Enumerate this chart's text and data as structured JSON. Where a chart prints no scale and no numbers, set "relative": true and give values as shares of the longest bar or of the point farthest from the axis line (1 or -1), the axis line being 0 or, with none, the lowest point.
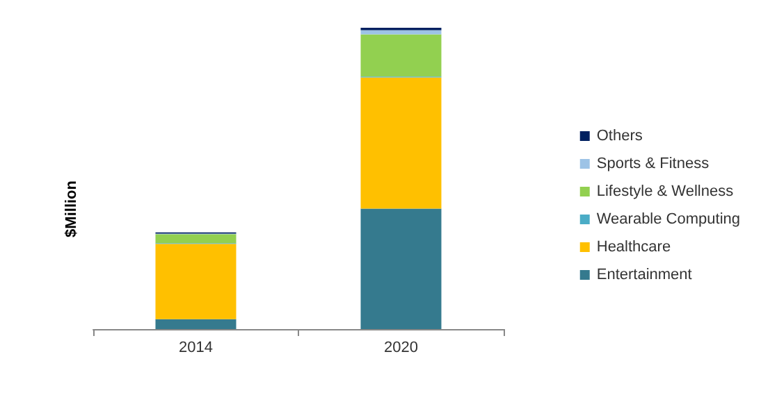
{
  "chart_data": {
    "type": "bar",
    "stacked": true,
    "relative": true,
    "ylabel": "$Million",
    "categories": [
      "2014",
      "2020"
    ],
    "legend": "right",
    "series": [
      {
        "name": "Entertainment",
        "color": "#357a8e",
        "values": [
          0.033,
          0.4
        ]
      },
      {
        "name": "Healthcare",
        "color": "#ffc000",
        "values": [
          0.25,
          0.435
        ]
      },
      {
        "name": "Wearable Computing",
        "color": "#4bacc6",
        "values": [
          0.002,
          0.003
        ]
      },
      {
        "name": "Lifestyle & Wellness",
        "color": "#92d050",
        "values": [
          0.03,
          0.14
        ]
      },
      {
        "name": "Sports & Fitness",
        "color": "#9dc3e6",
        "values": [
          0.002,
          0.014
        ]
      },
      {
        "name": "Others",
        "color": "#002060",
        "values": [
          0.004,
          0.008
        ]
      }
    ]
  }
}
